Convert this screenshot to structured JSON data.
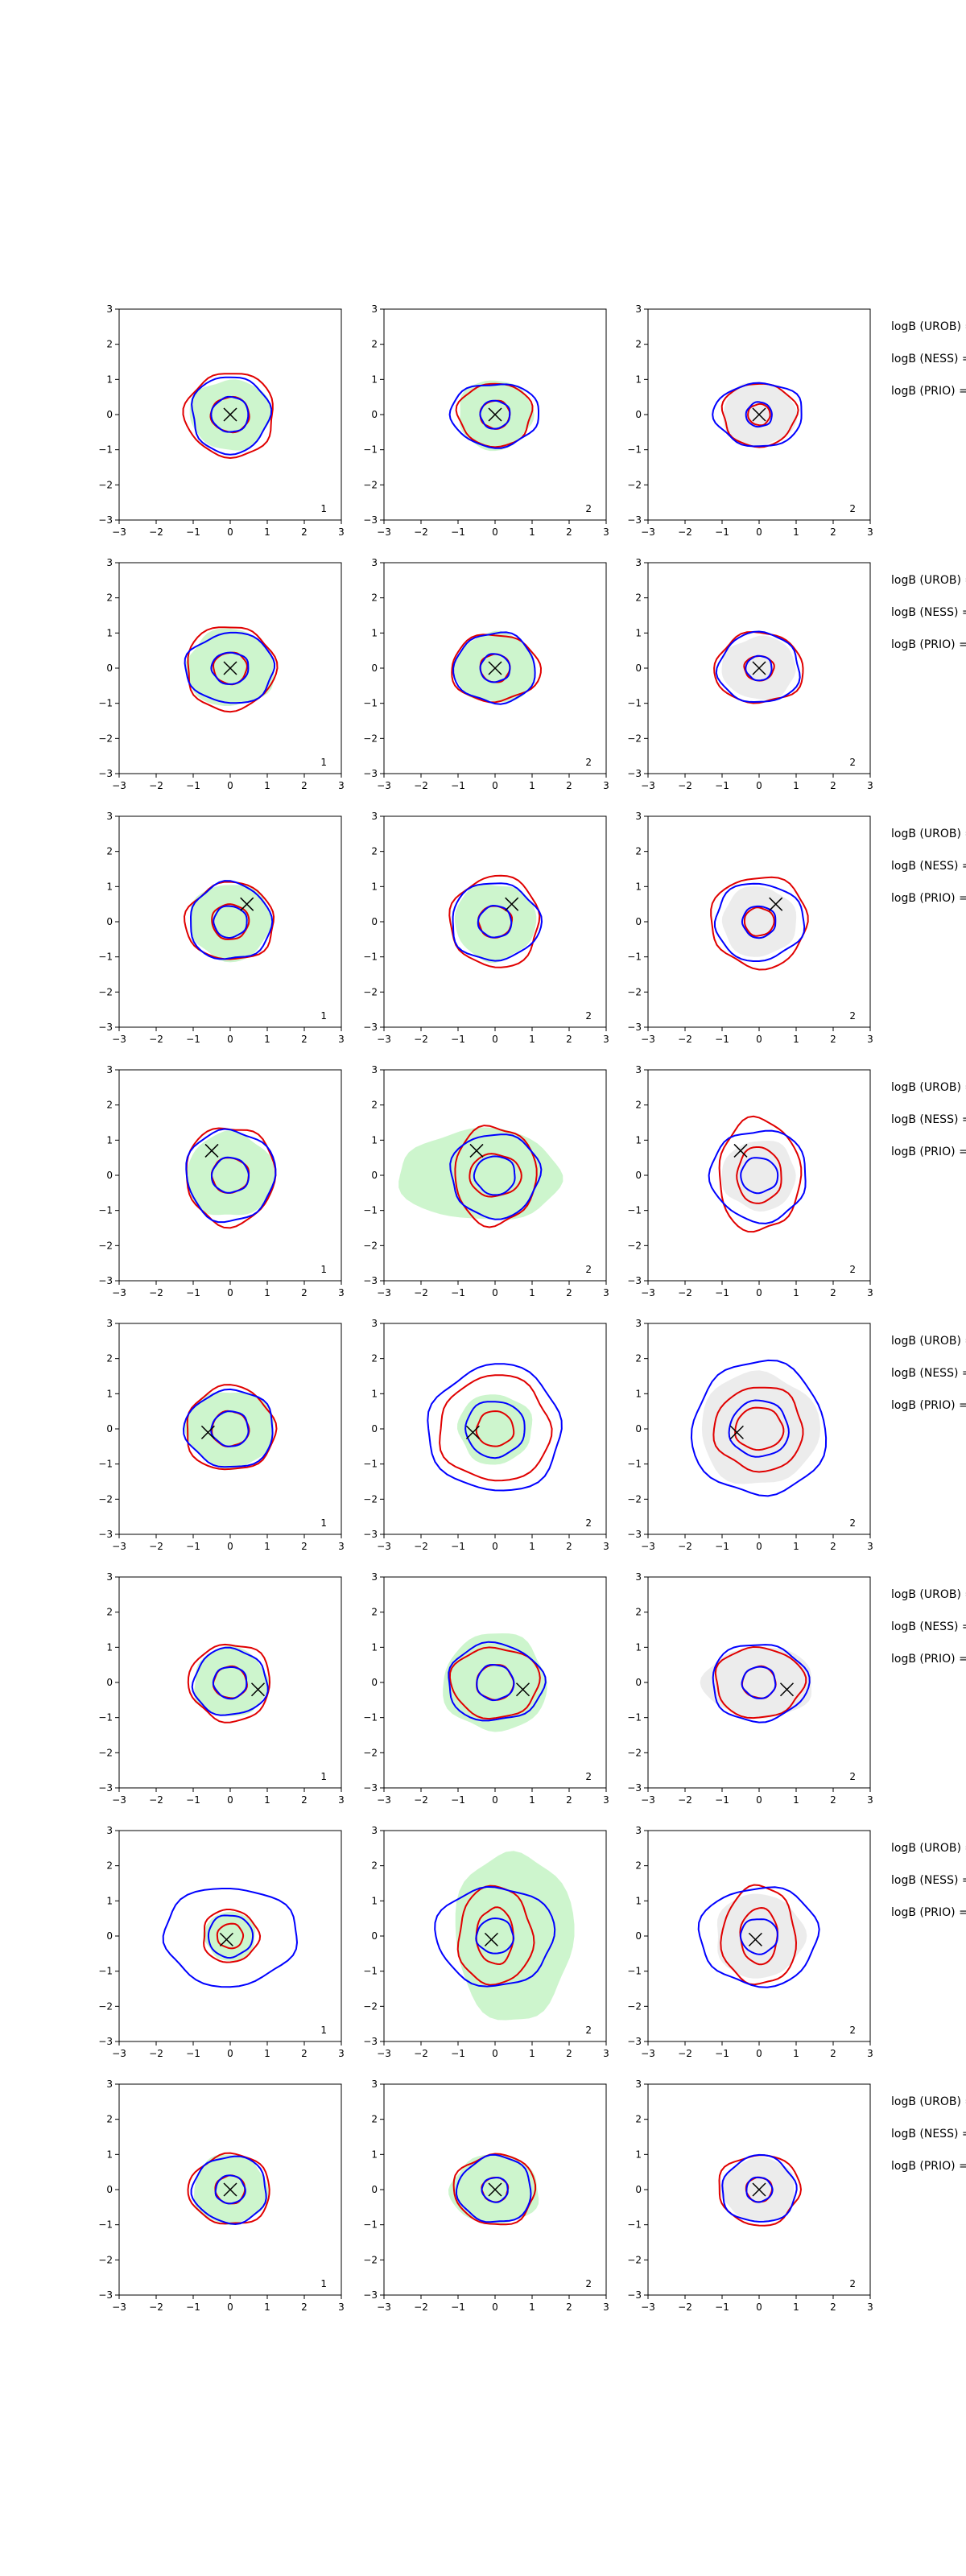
{
  "chart_data": {
    "type": "contour",
    "xlim": [
      -3,
      3
    ],
    "ylim": [
      -3,
      3
    ],
    "xticks": [
      -3,
      -2,
      -1,
      0,
      1,
      2,
      3
    ],
    "yticks": [
      -3,
      -2,
      -1,
      0,
      1,
      2,
      3
    ],
    "colors": {
      "blue": "#0000ff",
      "red": "#e00000",
      "fill_green": "#cdf5cd",
      "fill_grey": "#ececec",
      "marker": "#000000"
    },
    "side_labels": [
      "logB (UROB) =",
      "logB (NESS) =",
      "logB (PRIO) ="
    ],
    "rows": [
      {
        "panels": [
          {
            "label": "1",
            "fill": "green",
            "fill_size": [
              1.1,
              1.0
            ],
            "fill_center": [
              0,
              0
            ],
            "blue": [
              [
                0.5,
                0.5
              ],
              [
                1.05,
                1.1
              ]
            ],
            "red": [
              [
                0.52,
                0.5
              ],
              [
                1.2,
                1.2
              ]
            ],
            "marker": [
              0.0,
              0.0
            ]
          },
          {
            "label": "2",
            "fill": "green",
            "fill_size": [
              1.0,
              1.0
            ],
            "fill_center": [
              0,
              0
            ],
            "blue": [
              [
                0.4,
                0.4
              ],
              [
                1.2,
                0.9
              ]
            ],
            "red": [
              [
                0.4,
                0.4
              ],
              [
                1.0,
                0.9
              ]
            ],
            "marker": [
              0.0,
              0.0
            ]
          },
          {
            "label": "2",
            "fill": "grey",
            "fill_size": [
              1.0,
              0.9
            ],
            "fill_center": [
              0,
              0
            ],
            "blue": [
              [
                0.35,
                0.35
              ],
              [
                1.2,
                0.9
              ]
            ],
            "red": [
              [
                0.3,
                0.3
              ],
              [
                1.0,
                0.9
              ]
            ],
            "marker": [
              0.0,
              0.0
            ]
          }
        ]
      },
      {
        "panels": [
          {
            "label": "1",
            "fill": "green",
            "fill_size": [
              1.2,
              1.1
            ],
            "fill_center": [
              0,
              0
            ],
            "blue": [
              [
                0.5,
                0.45
              ],
              [
                1.2,
                1.0
              ]
            ],
            "red": [
              [
                0.45,
                0.45
              ],
              [
                1.2,
                1.2
              ]
            ],
            "marker": [
              0.0,
              0.0
            ]
          },
          {
            "label": "2",
            "fill": "green",
            "fill_size": [
              1.1,
              1.0
            ],
            "fill_center": [
              0,
              0
            ],
            "blue": [
              [
                0.4,
                0.4
              ],
              [
                1.1,
                1.0
              ]
            ],
            "red": [
              [
                0.4,
                0.4
              ],
              [
                1.2,
                0.95
              ]
            ],
            "marker": [
              0.0,
              0.0
            ]
          },
          {
            "label": "2",
            "fill": "grey",
            "fill_size": [
              1.0,
              0.9
            ],
            "fill_center": [
              0,
              0
            ],
            "blue": [
              [
                0.35,
                0.35
              ],
              [
                1.1,
                1.0
              ]
            ],
            "red": [
              [
                0.4,
                0.35
              ],
              [
                1.2,
                1.0
              ]
            ],
            "marker": [
              0.0,
              0.0
            ]
          }
        ]
      },
      {
        "panels": [
          {
            "label": "1",
            "fill": "green",
            "fill_size": [
              1.1,
              1.1
            ],
            "fill_center": [
              0,
              0
            ],
            "blue": [
              [
                0.45,
                0.45
              ],
              [
                1.1,
                1.1
              ]
            ],
            "red": [
              [
                0.5,
                0.5
              ],
              [
                1.2,
                1.1
              ]
            ],
            "marker": [
              0.45,
              0.5
            ]
          },
          {
            "label": "2",
            "fill": "green",
            "fill_size": [
              1.1,
              1.1
            ],
            "fill_center": [
              0,
              0
            ],
            "blue": [
              [
                0.45,
                0.45
              ],
              [
                1.2,
                1.1
              ]
            ],
            "red": [
              [
                0.45,
                0.45
              ],
              [
                1.2,
                1.3
              ]
            ],
            "marker": [
              0.45,
              0.5
            ]
          },
          {
            "label": "2",
            "fill": "grey",
            "fill_size": [
              1.0,
              1.0
            ],
            "fill_center": [
              0,
              0
            ],
            "blue": [
              [
                0.45,
                0.45
              ],
              [
                1.2,
                1.1
              ]
            ],
            "red": [
              [
                0.4,
                0.4
              ],
              [
                1.3,
                1.3
              ]
            ],
            "marker": [
              0.45,
              0.5
            ]
          }
        ]
      },
      {
        "panels": [
          {
            "label": "1",
            "fill": "green",
            "fill_size": [
              1.2,
              1.2
            ],
            "fill_center": [
              0,
              0
            ],
            "blue": [
              [
                0.5,
                0.5
              ],
              [
                1.2,
                1.3
              ]
            ],
            "red": [
              [
                0.5,
                0.5
              ],
              [
                1.2,
                1.4
              ]
            ],
            "marker": [
              -0.5,
              0.7
            ]
          },
          {
            "label": "2",
            "fill": "green",
            "fill_size": [
              2.2,
              1.3
            ],
            "fill_center": [
              -0.4,
              0
            ],
            "blue": [
              [
                0.55,
                0.55
              ],
              [
                1.2,
                1.2
              ]
            ],
            "red": [
              [
                0.7,
                0.6
              ],
              [
                1.1,
                1.4
              ]
            ],
            "marker": [
              -0.5,
              0.7
            ]
          },
          {
            "label": "2",
            "fill": "grey",
            "fill_size": [
              1.0,
              1.0
            ],
            "fill_center": [
              0,
              0
            ],
            "blue": [
              [
                0.5,
                0.5
              ],
              [
                1.3,
                1.3
              ]
            ],
            "red": [
              [
                0.6,
                0.8
              ],
              [
                1.1,
                1.6
              ]
            ],
            "marker": [
              -0.5,
              0.7
            ]
          }
        ]
      },
      {
        "panels": [
          {
            "label": "1",
            "fill": "green",
            "fill_size": [
              1.2,
              1.1
            ],
            "fill_center": [
              0,
              0
            ],
            "blue": [
              [
                0.5,
                0.5
              ],
              [
                1.2,
                1.1
              ]
            ],
            "red": [
              [
                0.5,
                0.5
              ],
              [
                1.2,
                1.2
              ]
            ],
            "marker": [
              -0.6,
              -0.1
            ]
          },
          {
            "label": "2",
            "fill": "green",
            "fill_size": [
              1.0,
              1.0
            ],
            "fill_center": [
              0,
              0
            ],
            "blue": [
              [
                0.8,
                0.8
              ],
              [
                1.8,
                1.8
              ]
            ],
            "red": [
              [
                0.5,
                0.5
              ],
              [
                1.5,
                1.5
              ]
            ],
            "marker": [
              -0.6,
              -0.1
            ]
          },
          {
            "label": "2",
            "fill": "grey",
            "fill_size": [
              1.6,
              1.6
            ],
            "fill_center": [
              0,
              0
            ],
            "blue": [
              [
                0.8,
                0.8
              ],
              [
                1.8,
                1.9
              ]
            ],
            "red": [
              [
                0.65,
                0.6
              ],
              [
                1.2,
                1.2
              ]
            ],
            "marker": [
              -0.6,
              -0.1
            ]
          }
        ]
      },
      {
        "panels": [
          {
            "label": "1",
            "fill": "green",
            "fill_size": [
              1.0,
              1.0
            ],
            "fill_center": [
              0,
              0
            ],
            "blue": [
              [
                0.45,
                0.45
              ],
              [
                1.0,
                0.95
              ]
            ],
            "red": [
              [
                0.45,
                0.45
              ],
              [
                1.1,
                1.1
              ]
            ],
            "marker": [
              0.75,
              -0.2
            ]
          },
          {
            "label": "2",
            "fill": "green",
            "fill_size": [
              1.4,
              1.4
            ],
            "fill_center": [
              0,
              0
            ],
            "blue": [
              [
                0.5,
                0.5
              ],
              [
                1.3,
                1.1
              ]
            ],
            "red": [
              [
                0.5,
                0.5
              ],
              [
                1.2,
                1.0
              ]
            ],
            "marker": [
              0.75,
              -0.2
            ]
          },
          {
            "label": "2",
            "fill": "grey",
            "fill_size": [
              1.5,
              1.0
            ],
            "fill_center": [
              0,
              0
            ],
            "blue": [
              [
                0.45,
                0.45
              ],
              [
                1.3,
                1.1
              ]
            ],
            "red": [
              [
                0.45,
                0.45
              ],
              [
                1.2,
                1.0
              ]
            ],
            "marker": [
              0.75,
              -0.2
            ]
          }
        ]
      },
      {
        "panels": [
          {
            "label": "1",
            "fill": "green",
            "fill_size": [
              0.7,
              0.7
            ],
            "fill_center": [
              0,
              0
            ],
            "blue": [
              [
                0.6,
                0.6
              ],
              [
                1.8,
                1.4
              ]
            ],
            "red": [
              [
                0.35,
                0.35
              ],
              [
                0.75,
                0.75
              ]
            ],
            "marker": [
              -0.1,
              -0.1
            ]
          },
          {
            "label": "2",
            "fill": "green",
            "fill_size": [
              1.6,
              2.4
            ],
            "fill_center": [
              0.5,
              0
            ],
            "blue": [
              [
                0.5,
                0.5
              ],
              [
                1.6,
                1.4
              ]
            ],
            "red": [
              [
                0.5,
                0.8
              ],
              [
                1.0,
                1.4
              ]
            ],
            "marker": [
              -0.1,
              -0.1
            ]
          },
          {
            "label": "2",
            "fill": "grey",
            "fill_size": [
              1.2,
              1.2
            ],
            "fill_center": [
              0,
              0
            ],
            "blue": [
              [
                0.5,
                0.5
              ],
              [
                1.6,
                1.4
              ]
            ],
            "red": [
              [
                0.5,
                0.8
              ],
              [
                1.0,
                1.4
              ]
            ],
            "marker": [
              -0.1,
              -0.1
            ]
          }
        ]
      },
      {
        "panels": [
          {
            "label": "1",
            "fill": "green",
            "fill_size": [
              1.0,
              1.0
            ],
            "fill_center": [
              0,
              0
            ],
            "blue": [
              [
                0.4,
                0.4
              ],
              [
                1.0,
                0.95
              ]
            ],
            "red": [
              [
                0.4,
                0.4
              ],
              [
                1.1,
                1.0
              ]
            ],
            "marker": [
              0.0,
              0.0
            ]
          },
          {
            "label": "2",
            "fill": "green",
            "fill_size": [
              1.2,
              1.0
            ],
            "fill_center": [
              0,
              0
            ],
            "blue": [
              [
                0.35,
                0.35
              ],
              [
                1.0,
                0.95
              ]
            ],
            "red": [
              [
                0.35,
                0.35
              ],
              [
                1.1,
                1.0
              ]
            ],
            "marker": [
              0.0,
              0.0
            ]
          },
          {
            "label": "2",
            "fill": "grey",
            "fill_size": [
              1.0,
              0.9
            ],
            "fill_center": [
              0,
              0
            ],
            "blue": [
              [
                0.35,
                0.35
              ],
              [
                1.0,
                0.95
              ]
            ],
            "red": [
              [
                0.35,
                0.35
              ],
              [
                1.1,
                1.0
              ]
            ],
            "marker": [
              0.0,
              0.0
            ]
          }
        ]
      }
    ]
  }
}
